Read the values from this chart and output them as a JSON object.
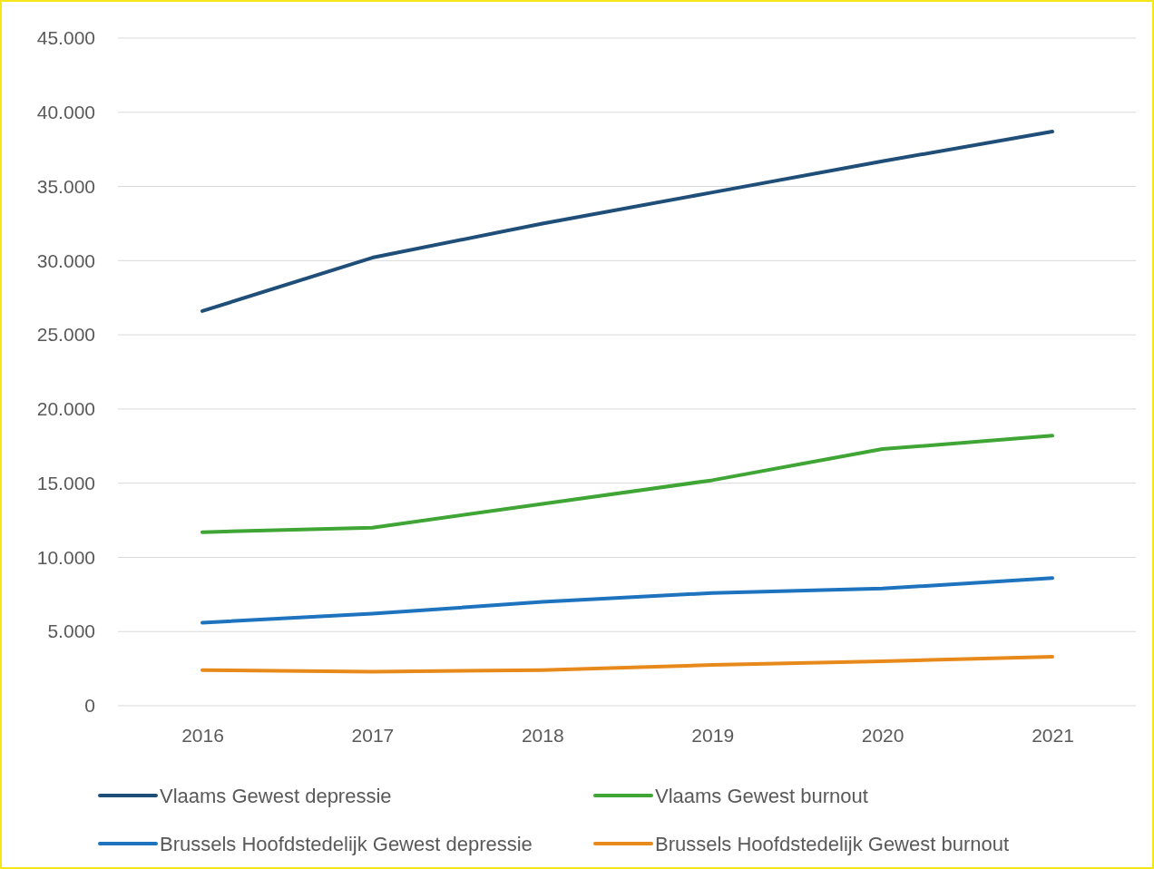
{
  "chart_data": {
    "type": "line",
    "categories": [
      "2016",
      "2017",
      "2018",
      "2019",
      "2020",
      "2021"
    ],
    "series": [
      {
        "name": "Vlaams Gewest depressie",
        "color": "#1f4e79",
        "values": [
          26600,
          30200,
          32500,
          34600,
          36700,
          38700
        ]
      },
      {
        "name": "Vlaams Gewest burnout",
        "color": "#3fa535",
        "values": [
          11700,
          12000,
          13600,
          15200,
          17300,
          18200
        ]
      },
      {
        "name": "Brussels Hoofdstedelijk Gewest depressie",
        "color": "#1e73be",
        "values": [
          5600,
          6200,
          7000,
          7600,
          7900,
          8600
        ]
      },
      {
        "name": "Brussels Hoofdstedelijk Gewest burnout",
        "color": "#e8891c",
        "values": [
          2400,
          2300,
          2400,
          2750,
          3000,
          3300
        ]
      }
    ],
    "ylim": [
      0,
      45000
    ],
    "yticks": [
      {
        "value": 0,
        "label": "0"
      },
      {
        "value": 5000,
        "label": "5.000"
      },
      {
        "value": 10000,
        "label": "10.000"
      },
      {
        "value": 15000,
        "label": "15.000"
      },
      {
        "value": 20000,
        "label": "20.000"
      },
      {
        "value": 25000,
        "label": "25.000"
      },
      {
        "value": 30000,
        "label": "30.000"
      },
      {
        "value": 35000,
        "label": "35.000"
      },
      {
        "value": 40000,
        "label": "40.000"
      },
      {
        "value": 45000,
        "label": "45.000"
      }
    ],
    "grid": "y",
    "legend": "bottom",
    "marker": "none",
    "line_style": "solid"
  }
}
